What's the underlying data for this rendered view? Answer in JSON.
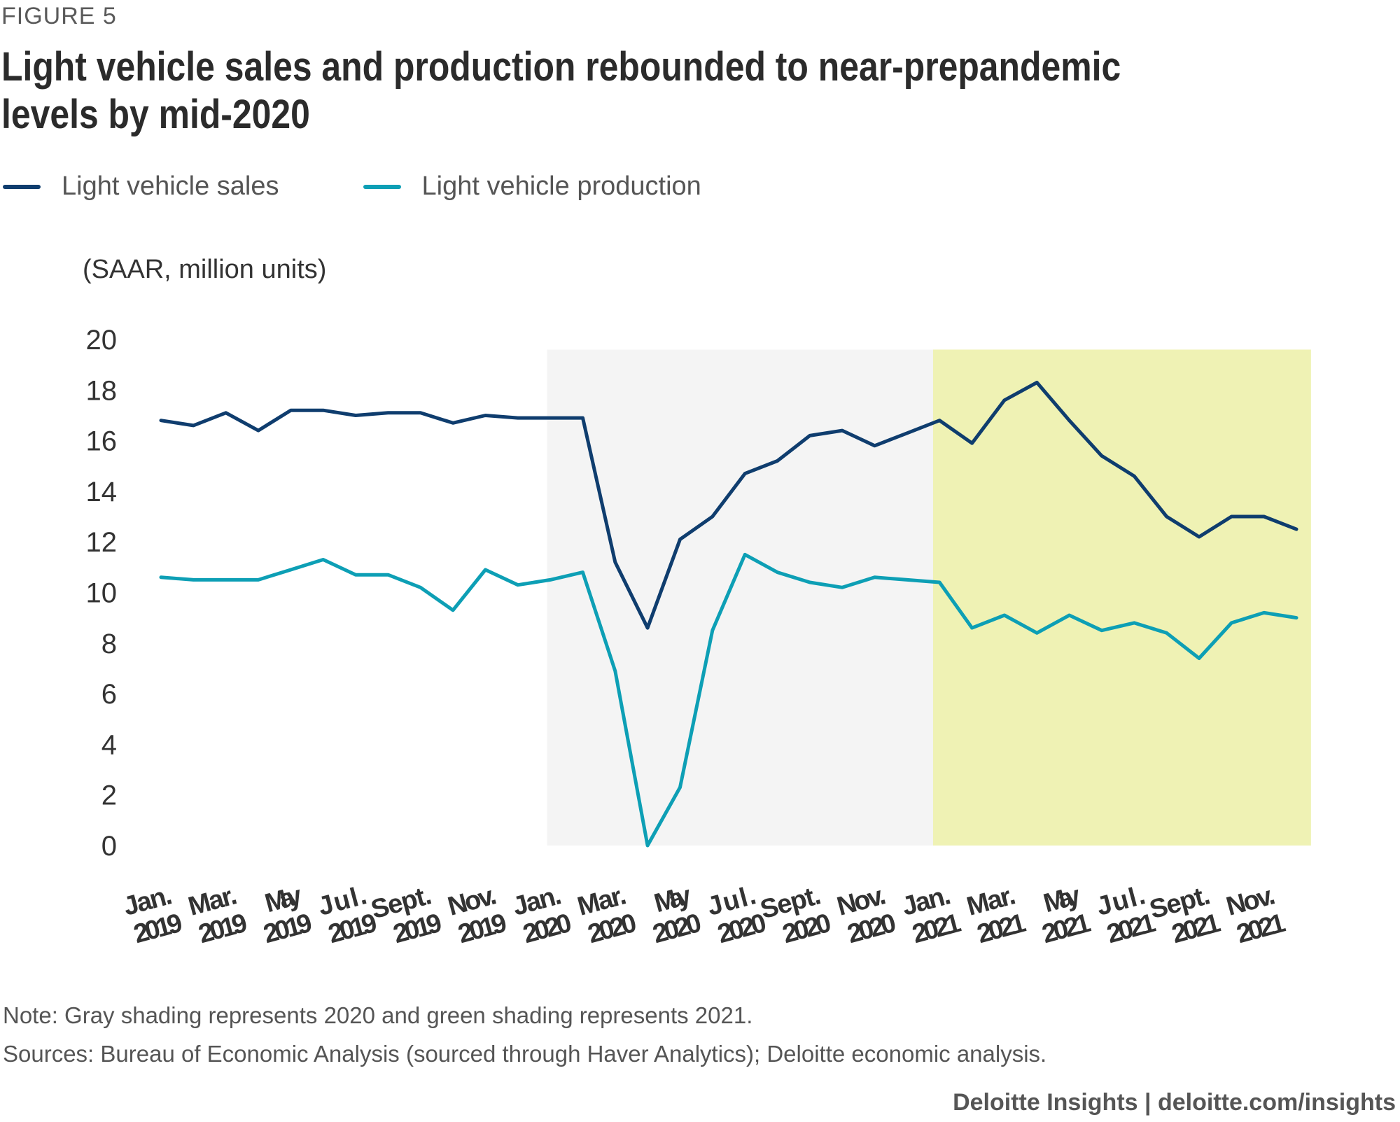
{
  "figure_label": "FIGURE 5",
  "title": "Light vehicle sales and production rebounded to near-prepandemic levels by mid-2020",
  "note": "Note: Gray shading represents 2020 and green shading represents 2021.",
  "sources": "Sources: Bureau of Economic Analysis (sourced through Haver Analytics); Deloitte economic analysis.",
  "footer": "Deloitte Insights | deloitte.com/insights",
  "chart_data": {
    "type": "line",
    "title": "Light vehicle sales and production rebounded to near-prepandemic levels by mid-2020",
    "ylabel": "(SAAR, million units)",
    "xlabel": "",
    "ylim": [
      0,
      20
    ],
    "yticks": [
      "0",
      "2",
      "4",
      "6",
      "8",
      "10",
      "12",
      "14",
      "16",
      "18",
      "20"
    ],
    "grid": false,
    "legend_position": "top-left",
    "x": [
      "Jan 2019",
      "Feb 2019",
      "Mar 2019",
      "Apr 2019",
      "May 2019",
      "Jun 2019",
      "Jul 2019",
      "Aug 2019",
      "Sep 2019",
      "Oct 2019",
      "Nov 2019",
      "Dec 2019",
      "Jan 2020",
      "Feb 2020",
      "Mar 2020",
      "Apr 2020",
      "May 2020",
      "Jun 2020",
      "Jul 2020",
      "Aug 2020",
      "Sep 2020",
      "Oct 2020",
      "Nov 2020",
      "Dec 2020",
      "Jan 2021",
      "Feb 2021",
      "Mar 2021",
      "Apr 2021",
      "May 2021",
      "Jun 2021",
      "Jul 2021",
      "Aug 2021",
      "Sep 2021",
      "Oct 2021",
      "Nov 2021",
      "Dec 2021"
    ],
    "xtick_labels": [
      {
        "month": "Jan.",
        "year": "2019",
        "index": 0
      },
      {
        "month": "Mar.",
        "year": "2019",
        "index": 2
      },
      {
        "month": "May",
        "year": "2019",
        "index": 4
      },
      {
        "month": "Jul.",
        "year": "2019",
        "index": 6
      },
      {
        "month": "Sept.",
        "year": "2019",
        "index": 8
      },
      {
        "month": "Nov.",
        "year": "2019",
        "index": 10
      },
      {
        "month": "Jan.",
        "year": "2020",
        "index": 12
      },
      {
        "month": "Mar.",
        "year": "2020",
        "index": 14
      },
      {
        "month": "May",
        "year": "2020",
        "index": 16
      },
      {
        "month": "Jul.",
        "year": "2020",
        "index": 18
      },
      {
        "month": "Sept.",
        "year": "2020",
        "index": 20
      },
      {
        "month": "Nov.",
        "year": "2020",
        "index": 22
      },
      {
        "month": "Jan.",
        "year": "2021",
        "index": 24
      },
      {
        "month": "Mar.",
        "year": "2021",
        "index": 26
      },
      {
        "month": "May",
        "year": "2021",
        "index": 28
      },
      {
        "month": "Jul.",
        "year": "2021",
        "index": 30
      },
      {
        "month": "Sept.",
        "year": "2021",
        "index": 32
      },
      {
        "month": "Nov.",
        "year": "2021",
        "index": 34
      }
    ],
    "series": [
      {
        "name": "Light vehicle sales",
        "color": "#0f3d6e",
        "values": [
          16.8,
          16.6,
          17.1,
          16.4,
          17.2,
          17.2,
          17.0,
          17.1,
          17.1,
          16.7,
          17.0,
          16.9,
          16.9,
          16.9,
          11.2,
          8.6,
          12.1,
          13.0,
          14.7,
          15.2,
          16.2,
          16.4,
          15.8,
          16.3,
          16.8,
          15.9,
          17.6,
          18.3,
          16.8,
          15.4,
          14.6,
          13.0,
          12.2,
          13.0,
          13.0,
          12.5
        ]
      },
      {
        "name": "Light vehicle production",
        "color": "#0d9fb5",
        "values": [
          10.6,
          10.5,
          10.5,
          10.5,
          10.9,
          11.3,
          10.7,
          10.7,
          10.2,
          9.3,
          10.9,
          10.3,
          10.5,
          10.8,
          6.9,
          0.0,
          2.3,
          8.5,
          11.5,
          10.8,
          10.4,
          10.2,
          10.6,
          10.5,
          10.4,
          8.6,
          9.1,
          8.4,
          9.1,
          8.5,
          8.8,
          8.4,
          7.4,
          8.8,
          9.2,
          9.0
        ]
      }
    ],
    "shading": [
      {
        "label": "2020",
        "color": "#f4f4f4",
        "from_index": 11.9,
        "to_index": 23.8
      },
      {
        "label": "2021",
        "color": "#eff2b4",
        "from_index": 23.8,
        "to_index": 35.45
      }
    ]
  }
}
